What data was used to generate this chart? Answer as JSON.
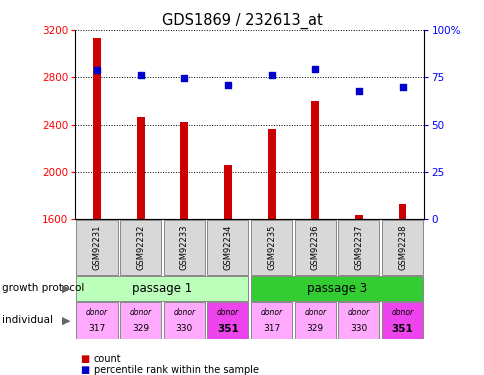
{
  "title": "GDS1869 / 232613_at",
  "samples": [
    "GSM92231",
    "GSM92232",
    "GSM92233",
    "GSM92234",
    "GSM92235",
    "GSM92236",
    "GSM92237",
    "GSM92238"
  ],
  "counts": [
    3130,
    2465,
    2425,
    2060,
    2360,
    2600,
    1635,
    1730
  ],
  "percentiles": [
    79,
    76,
    74.5,
    71,
    76,
    79.5,
    68,
    70
  ],
  "ylim_left": [
    1600,
    3200
  ],
  "ylim_right": [
    0,
    100
  ],
  "yticks_left": [
    1600,
    2000,
    2400,
    2800,
    3200
  ],
  "yticks_right": [
    0,
    25,
    50,
    75,
    100
  ],
  "bar_color": "#cc0000",
  "dot_color": "#0000cc",
  "passage_groups": [
    {
      "label": "passage 1",
      "indices": [
        0,
        1,
        2,
        3
      ],
      "color": "#bbffbb"
    },
    {
      "label": "passage 3",
      "indices": [
        4,
        5,
        6,
        7
      ],
      "color": "#33cc33"
    }
  ],
  "individuals": [
    {
      "label": "donor",
      "num": "317",
      "color": "#ffaaff",
      "bold": false
    },
    {
      "label": "donor",
      "num": "329",
      "color": "#ffaaff",
      "bold": false
    },
    {
      "label": "donor",
      "num": "330",
      "color": "#ffaaff",
      "bold": false
    },
    {
      "label": "donor",
      "num": "351",
      "color": "#ee44ee",
      "bold": true
    },
    {
      "label": "donor",
      "num": "317",
      "color": "#ffaaff",
      "bold": false
    },
    {
      "label": "donor",
      "num": "329",
      "color": "#ffaaff",
      "bold": false
    },
    {
      "label": "donor",
      "num": "330",
      "color": "#ffaaff",
      "bold": false
    },
    {
      "label": "donor",
      "num": "351",
      "color": "#ee44ee",
      "bold": true
    }
  ],
  "legend_count_color": "#cc0000",
  "legend_pct_color": "#0000cc",
  "growth_protocol_label": "growth protocol",
  "individual_label": "individual",
  "baseline": 1600,
  "bar_width": 0.18
}
